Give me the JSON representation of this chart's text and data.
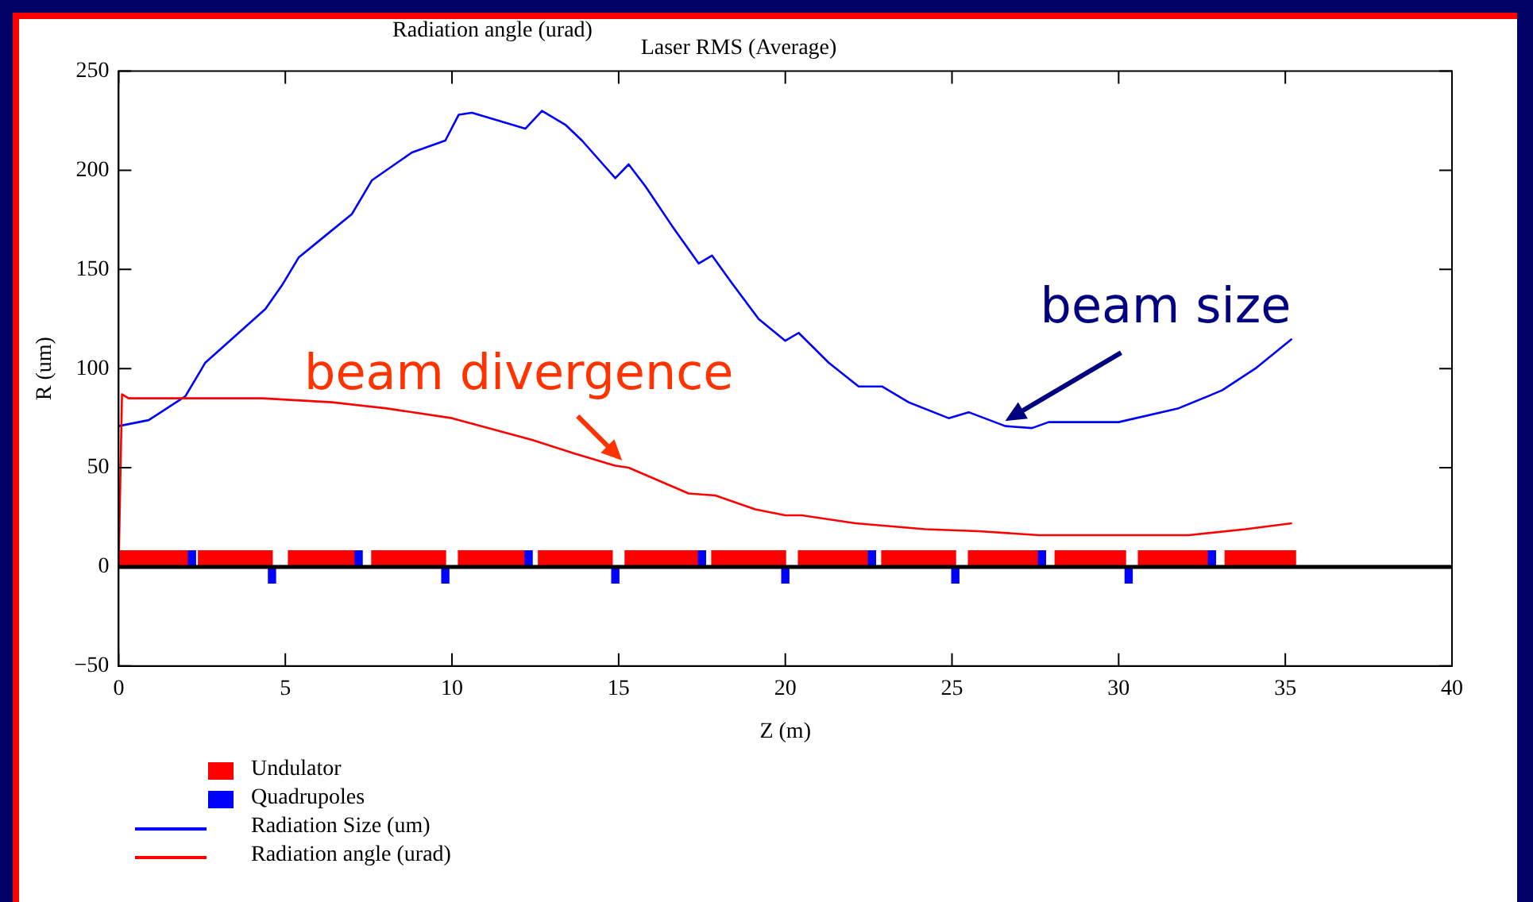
{
  "chart_data": {
    "type": "line",
    "title": "Laser RMS (Average)",
    "xlabel": "Z (m)",
    "ylabel": "R (um)",
    "xlim": [
      0,
      40
    ],
    "xticks": [
      0,
      5,
      10,
      15,
      20,
      25,
      30,
      35,
      40
    ],
    "ylim": [
      -50,
      250
    ],
    "yticks": [
      -50,
      0,
      50,
      100,
      150,
      200,
      250
    ],
    "grid": false,
    "legend": "bottom left",
    "marker": "none",
    "line_style": "solid",
    "ref_lines": [
      {
        "axis": "y",
        "value": 0,
        "color": "#000000"
      }
    ],
    "annotations": [
      {
        "text": "beam divergence",
        "x": 15.2,
        "y": 52
      },
      {
        "text": "beam size",
        "x": 26.5,
        "y": 72
      },
      "Radiation angle (urad)"
    ],
    "series": [
      {
        "name": "Undulator",
        "type": "area",
        "color": "#ff0000",
        "x": [
          0,
          0,
          2.2,
          2.2,
          2.4,
          2.4,
          4.6,
          4.6,
          5.1,
          5.1,
          7.2,
          7.2,
          7.6,
          7.6,
          9.8,
          9.8,
          10.2,
          10.2,
          12.2,
          12.2,
          12.6,
          12.6,
          14.8,
          14.8,
          15.2,
          15.2,
          17.5,
          17.5,
          17.8,
          17.8,
          20,
          20,
          20.4,
          20.4,
          22.6,
          22.6,
          22.9,
          22.9,
          25.1,
          25.1,
          25.5,
          25.5,
          27.7,
          27.7,
          28.1,
          28.1,
          30.2,
          30.2,
          30.6,
          30.6,
          32.8,
          32.8,
          33.2,
          33.2,
          35.3,
          35.3
        ],
        "values": [
          0,
          8,
          8,
          0,
          0,
          8,
          8,
          0,
          0,
          8,
          8,
          0,
          0,
          8,
          8,
          0,
          0,
          8,
          8,
          0,
          0,
          8,
          8,
          0,
          0,
          8,
          8,
          0,
          0,
          8,
          8,
          0,
          0,
          8,
          8,
          0,
          0,
          8,
          8,
          0,
          0,
          8,
          8,
          0,
          0,
          8,
          8,
          0,
          0,
          8,
          8,
          0,
          0,
          8,
          8,
          0
        ]
      },
      {
        "name": "Quadrupoles",
        "type": "area",
        "color": "#0000ff",
        "x": [
          2.1,
          2.1,
          2.3,
          2.3,
          4.5,
          4.5,
          4.7,
          4.7,
          7.1,
          7.1,
          7.3,
          7.3,
          9.7,
          9.7,
          9.9,
          9.9,
          12.2,
          12.2,
          12.4,
          12.4,
          14.8,
          14.8,
          15,
          15,
          17.4,
          17.4,
          17.6,
          17.6,
          19.9,
          19.9,
          20.1,
          20.1,
          22.5,
          22.5,
          22.7,
          22.7,
          25,
          25,
          25.2,
          25.2,
          27.6,
          27.6,
          27.8,
          27.8,
          30.2,
          30.2,
          30.4,
          30.4,
          32.7,
          32.7,
          32.9,
          32.9
        ],
        "values": [
          0,
          8,
          8,
          0,
          0,
          -8,
          -8,
          0,
          0,
          8,
          8,
          0,
          0,
          -8,
          -8,
          0,
          0,
          8,
          8,
          0,
          0,
          -8,
          -8,
          0,
          0,
          8,
          8,
          0,
          0,
          -8,
          -8,
          0,
          0,
          8,
          8,
          0,
          0,
          -8,
          -8,
          0,
          0,
          8,
          8,
          0,
          0,
          -8,
          -8,
          0,
          0,
          8,
          8,
          0
        ]
      },
      {
        "name": "Radiation Size (um)",
        "type": "line",
        "color": "#0000ff",
        "x": [
          0,
          0.9,
          2,
          2.6,
          3.6,
          4.4,
          4.9,
          5.4,
          6.2,
          7,
          7.6,
          8.8,
          9.8,
          10.2,
          10.6,
          11.4,
          12.2,
          12.7,
          13.4,
          13.9,
          14.9,
          15.3,
          15.8,
          16.6,
          17.4,
          17.8,
          18.4,
          19.2,
          20,
          20.4,
          21.3,
          22.2,
          22.9,
          23.7,
          24.9,
          25.5,
          26.6,
          27.4,
          27.9,
          30,
          31.8,
          33.1,
          34.1,
          35.2
        ],
        "values": [
          71,
          74,
          86,
          103,
          118,
          130,
          142,
          156,
          167,
          178,
          195,
          209,
          215,
          228,
          229,
          225,
          221,
          230,
          223,
          215,
          196,
          203,
          192,
          172,
          153,
          157,
          143,
          125,
          114,
          118,
          103,
          91,
          91,
          83,
          75,
          78,
          71,
          70,
          73,
          73,
          80,
          89,
          100,
          115
        ]
      },
      {
        "name": "Radiation angle (urad)",
        "type": "line",
        "color": "#ff0000",
        "x": [
          0,
          0.1,
          0.3,
          4.3,
          6.4,
          8,
          10,
          11.3,
          12.4,
          13.7,
          14.9,
          15.3,
          17.1,
          17.9,
          19.1,
          20,
          20.5,
          22.1,
          24.2,
          25.8,
          27.6,
          32.1,
          33.8,
          35.2
        ],
        "values": [
          0,
          87,
          85,
          85,
          83,
          80,
          75,
          69,
          64,
          57,
          51,
          50,
          37,
          36,
          29,
          26,
          26,
          22,
          19,
          18,
          16,
          16,
          19,
          22
        ]
      }
    ]
  }
}
